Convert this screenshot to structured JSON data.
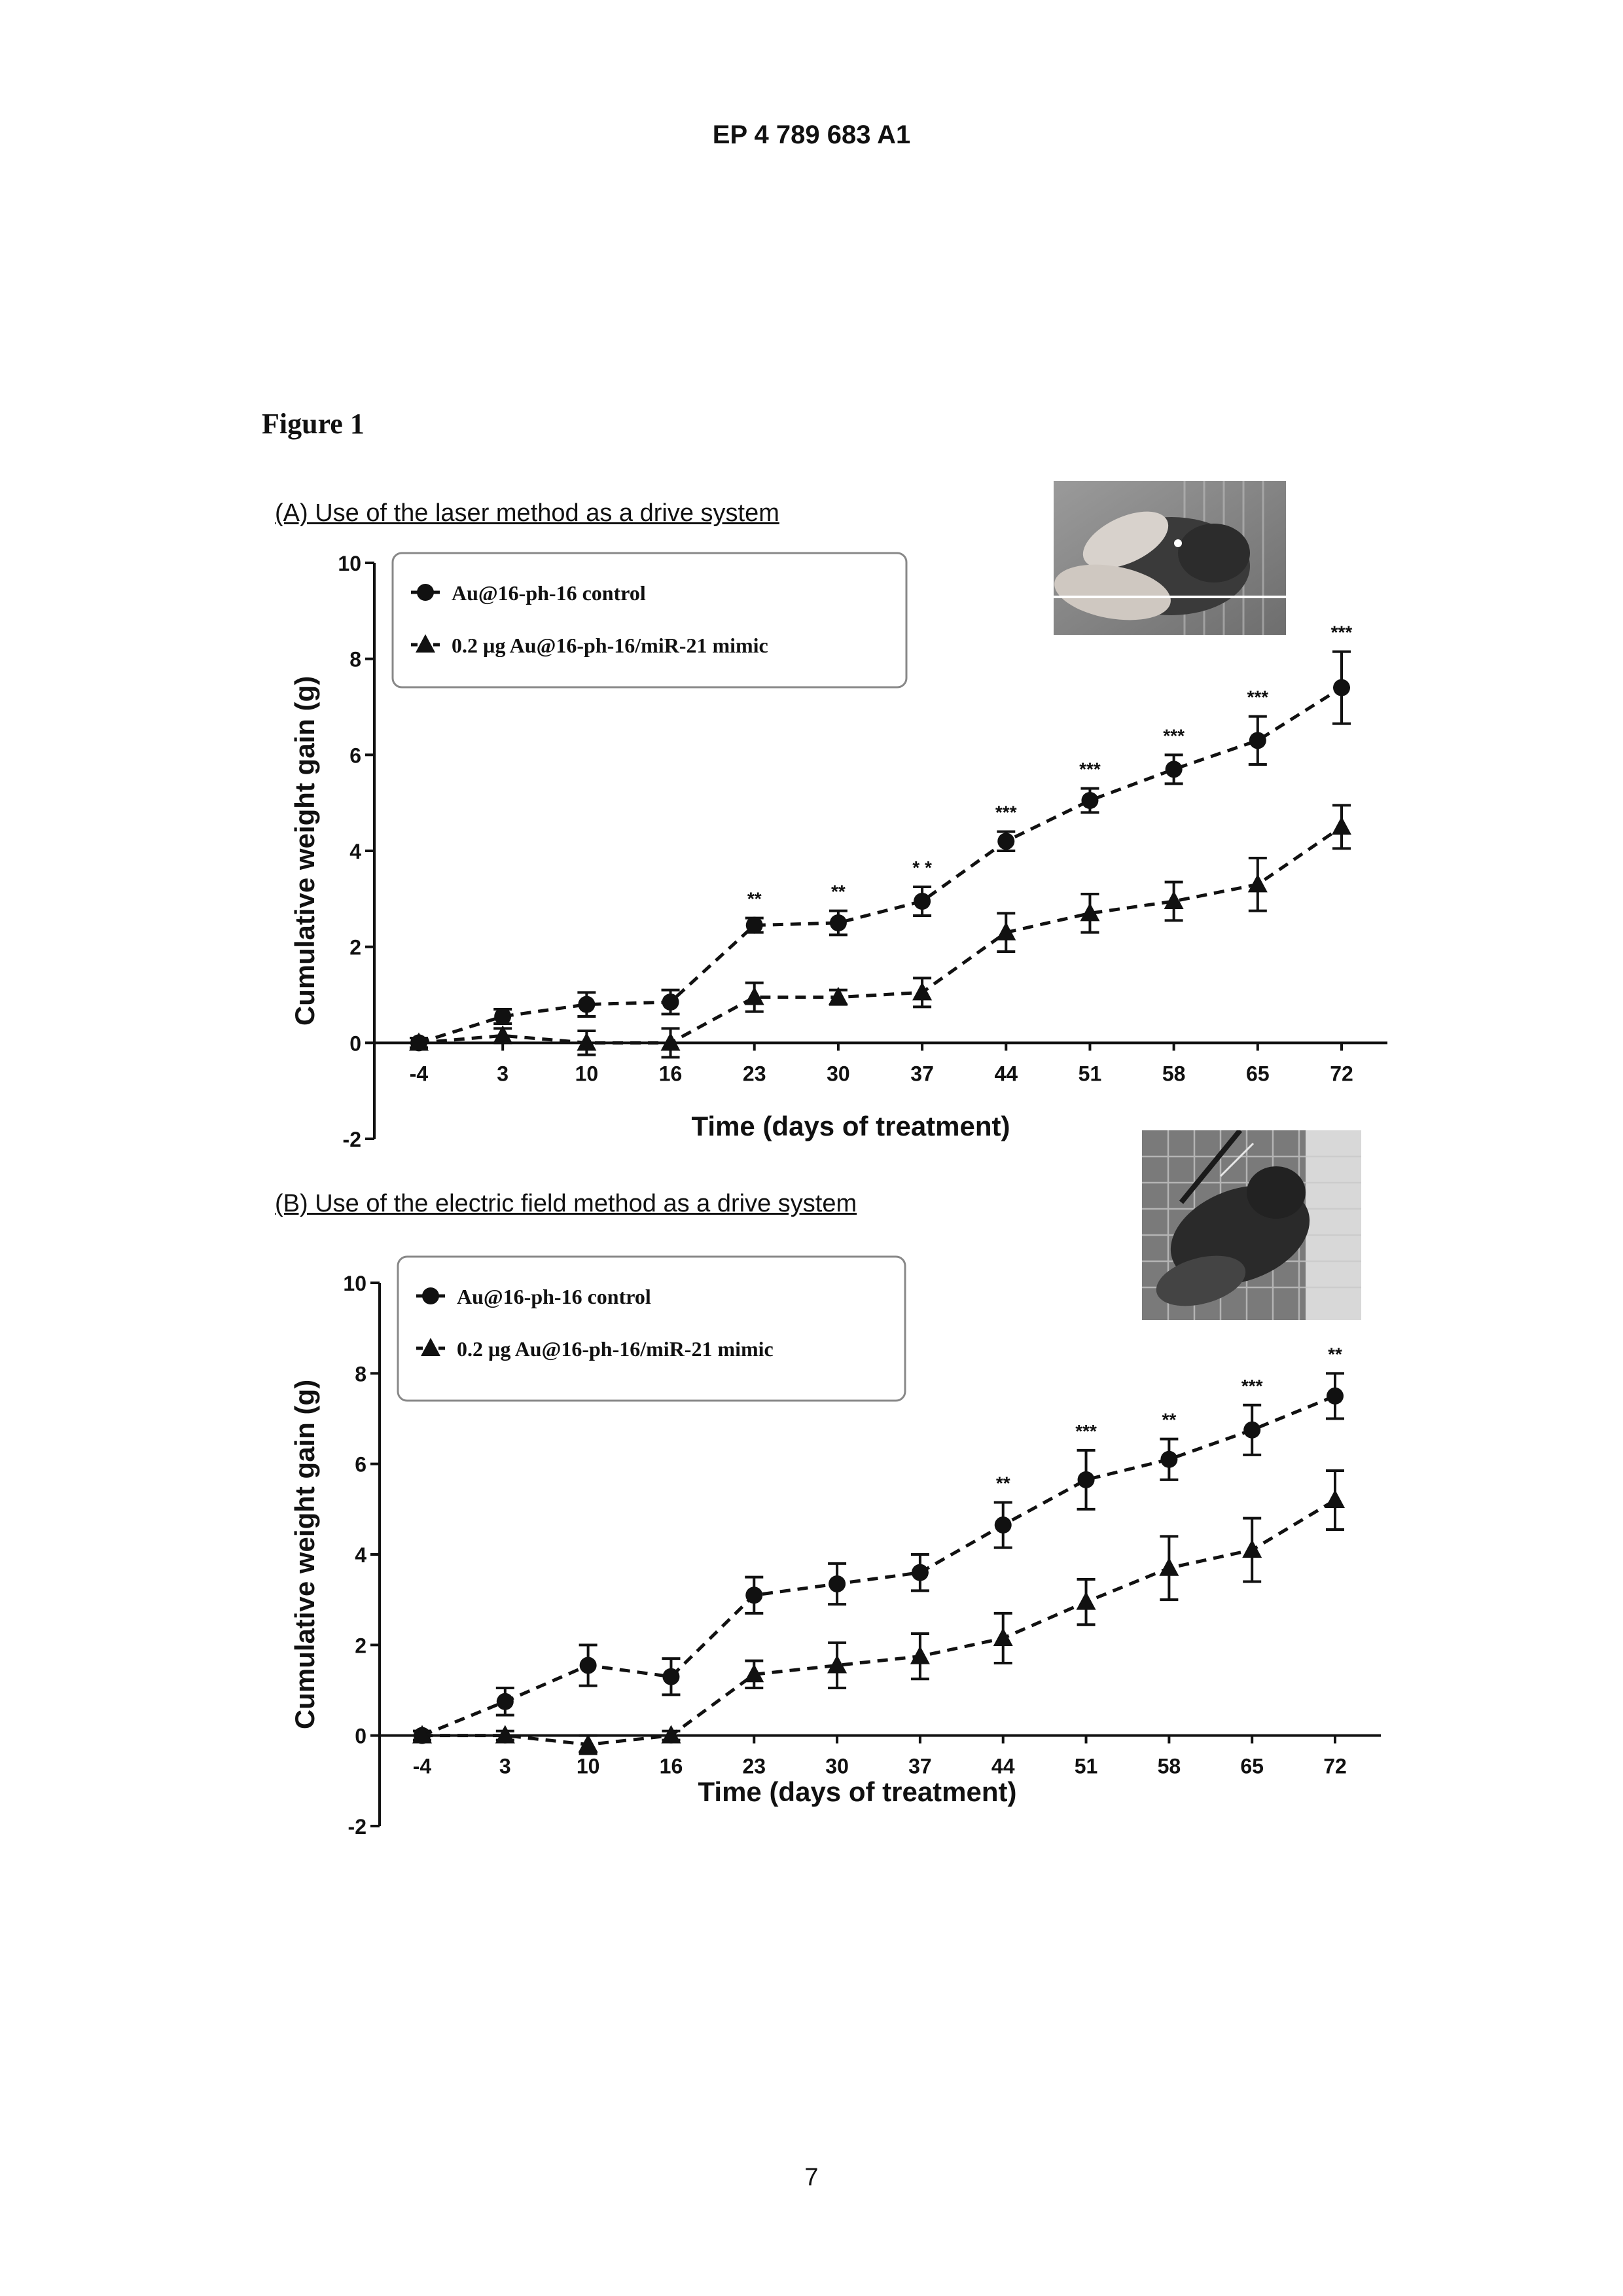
{
  "page": {
    "header": "EP 4 789 683 A1",
    "figure_title": "Figure 1",
    "page_number": "7"
  },
  "photos": {
    "a_icon": "photo-mouse-laser",
    "b_icon": "photo-mouse-cage-electric-field"
  },
  "chart_data": [
    {
      "type": "line",
      "title": "(A) Use of the laser method as a drive system",
      "xlabel": "Time (days of treatment)",
      "ylabel": "Cumulative weight gain (g)",
      "categories": [
        "-4",
        "3",
        "10",
        "16",
        "23",
        "30",
        "37",
        "44",
        "51",
        "58",
        "65",
        "72"
      ],
      "ylim": [
        -2,
        10
      ],
      "yticks": [
        "-2",
        "0",
        "2",
        "4",
        "6",
        "8",
        "10"
      ],
      "legend_position": "top-left",
      "series": [
        {
          "name": "Au@16-ph-16 control",
          "marker": "circle",
          "values": [
            0,
            0.55,
            0.8,
            0.85,
            2.45,
            2.5,
            2.95,
            4.2,
            5.05,
            5.7,
            6.3,
            7.4
          ],
          "errors": [
            0.1,
            0.15,
            0.25,
            0.25,
            0.15,
            0.25,
            0.3,
            0.2,
            0.25,
            0.3,
            0.5,
            0.75
          ]
        },
        {
          "name": "0.2 µg Au@16-ph-16/miR-21 mimic",
          "marker": "triangle",
          "values": [
            0,
            0.15,
            0,
            0,
            0.95,
            0.95,
            1.05,
            2.3,
            2.7,
            2.95,
            3.3,
            4.5
          ],
          "errors": [
            0.1,
            0.15,
            0.25,
            0.3,
            0.3,
            0.15,
            0.3,
            0.4,
            0.4,
            0.4,
            0.55,
            0.45
          ]
        }
      ],
      "significance": [
        "",
        "",
        "",
        "",
        "**",
        "**",
        "* *",
        "***",
        "***",
        "***",
        "***",
        "***"
      ],
      "colors": {
        "series": "#111111",
        "legend_border": "#888888"
      }
    },
    {
      "type": "line",
      "title": "(B) Use of the electric field method as a drive system",
      "xlabel": "Time (days of treatment)",
      "ylabel": "Cumulative weight gain (g)",
      "categories": [
        "-4",
        "3",
        "10",
        "16",
        "23",
        "30",
        "37",
        "44",
        "51",
        "58",
        "65",
        "72"
      ],
      "ylim": [
        -2,
        10
      ],
      "yticks": [
        "-2",
        "0",
        "2",
        "4",
        "6",
        "8",
        "10"
      ],
      "legend_position": "top-left",
      "series": [
        {
          "name": "Au@16-ph-16 control",
          "marker": "circle",
          "values": [
            0,
            0.75,
            1.55,
            1.3,
            3.1,
            3.35,
            3.6,
            4.65,
            5.65,
            6.1,
            6.75,
            7.5
          ],
          "errors": [
            0.1,
            0.3,
            0.45,
            0.4,
            0.4,
            0.45,
            0.4,
            0.5,
            0.65,
            0.45,
            0.55,
            0.5
          ]
        },
        {
          "name": "0.2 µg Au@16-ph-16/miR-21 mimic",
          "marker": "triangle",
          "values": [
            0,
            0,
            -0.2,
            0,
            1.35,
            1.55,
            1.75,
            2.15,
            2.95,
            3.7,
            4.1,
            5.2
          ],
          "errors": [
            0.1,
            0.1,
            0.2,
            0.1,
            0.3,
            0.5,
            0.5,
            0.55,
            0.5,
            0.7,
            0.7,
            0.65
          ]
        }
      ],
      "significance": [
        "",
        "",
        "",
        "",
        "",
        "",
        "",
        "**",
        "***",
        "**",
        "***",
        "**"
      ],
      "colors": {
        "series": "#111111",
        "legend_border": "#888888"
      }
    }
  ]
}
